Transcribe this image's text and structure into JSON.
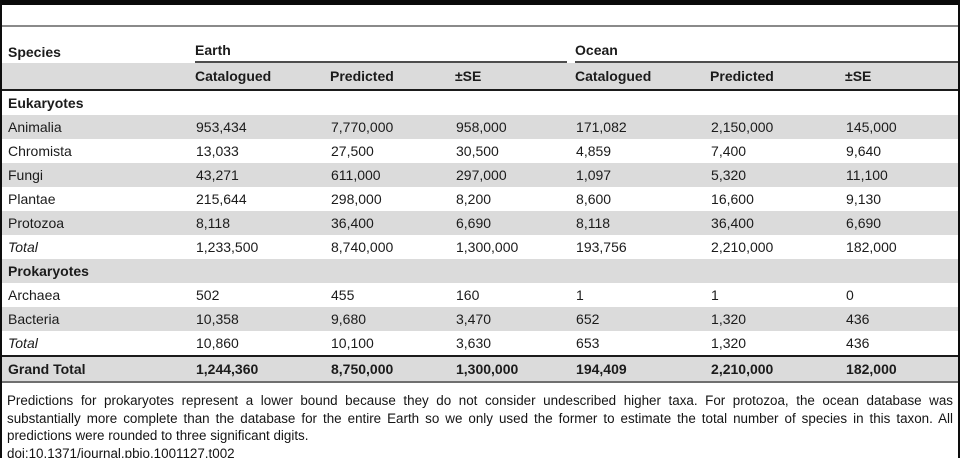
{
  "table": {
    "col1_header": "Species",
    "groups": [
      {
        "label": "Earth",
        "columns": [
          "Catalogued",
          "Predicted",
          "±SE"
        ]
      },
      {
        "label": "Ocean",
        "columns": [
          "Catalogued",
          "Predicted",
          "±SE"
        ]
      }
    ],
    "sections": [
      {
        "header": "Eukaryotes",
        "rows": [
          {
            "label": "Animalia",
            "italic": false,
            "values": [
              "953,434",
              "7,770,000",
              "958,000",
              "171,082",
              "2,150,000",
              "145,000"
            ]
          },
          {
            "label": "Chromista",
            "italic": false,
            "values": [
              "13,033",
              "27,500",
              "30,500",
              "4,859",
              "7,400",
              "9,640"
            ]
          },
          {
            "label": "Fungi",
            "italic": false,
            "values": [
              "43,271",
              "611,000",
              "297,000",
              "1,097",
              "5,320",
              "11,100"
            ]
          },
          {
            "label": "Plantae",
            "italic": false,
            "values": [
              "215,644",
              "298,000",
              "8,200",
              "8,600",
              "16,600",
              "9,130"
            ]
          },
          {
            "label": "Protozoa",
            "italic": false,
            "values": [
              "8,118",
              "36,400",
              "6,690",
              "8,118",
              "36,400",
              "6,690"
            ]
          },
          {
            "label": "Total",
            "italic": true,
            "values": [
              "1,233,500",
              "8,740,000",
              "1,300,000",
              "193,756",
              "2,210,000",
              "182,000"
            ]
          }
        ]
      },
      {
        "header": "Prokaryotes",
        "rows": [
          {
            "label": "Archaea",
            "italic": false,
            "values": [
              "502",
              "455",
              "160",
              "1",
              "1",
              "0"
            ]
          },
          {
            "label": "Bacteria",
            "italic": false,
            "values": [
              "10,358",
              "9,680",
              "3,470",
              "652",
              "1,320",
              "436"
            ]
          },
          {
            "label": "Total",
            "italic": true,
            "values": [
              "10,860",
              "10,100",
              "3,630",
              "653",
              "1,320",
              "436"
            ]
          }
        ]
      }
    ],
    "grand_total": {
      "label": "Grand Total",
      "values": [
        "1,244,360",
        "8,750,000",
        "1,300,000",
        "194,409",
        "2,210,000",
        "182,000"
      ]
    }
  },
  "footer": {
    "note": "Predictions for prokaryotes represent a lower bound because they do not consider undescribed higher taxa. For protozoa, the ocean database was substantially more complete than the database for the entire Earth so we only used the former to estimate the total number of species in this taxon. All predictions were rounded to three significant digits.",
    "doi": "doi:10.1371/journal.pbio.1001127.t002"
  },
  "colors": {
    "row_stripe": "#dbdbdb",
    "top_bar": "#0a0a0a",
    "gray_rule": "#8a8a8a",
    "group_underline": "#4d4d4d",
    "grand_total_bottom_rule": "#6f6f6f"
  }
}
